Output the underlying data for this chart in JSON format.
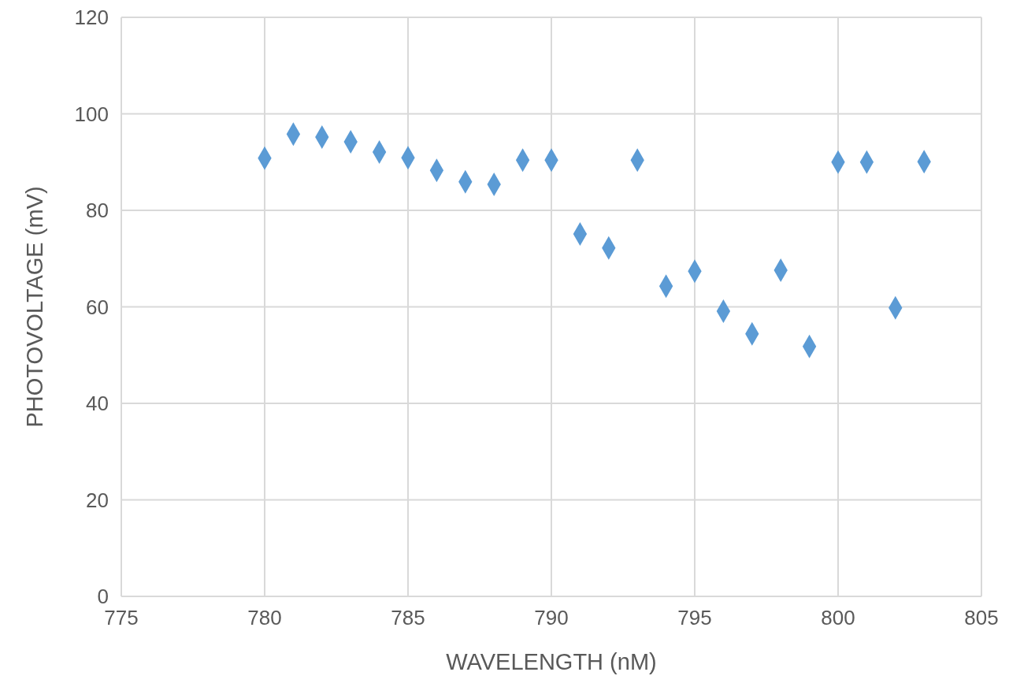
{
  "chart_data": {
    "type": "scatter",
    "xlabel": "WAVELENGTH (nM)",
    "ylabel": "PHOTOVOLTAGE (mV)",
    "x": [
      780,
      781,
      782,
      783,
      784,
      785,
      786,
      787,
      788,
      789,
      790,
      791,
      792,
      793,
      794,
      795,
      796,
      797,
      798,
      799,
      800,
      801,
      802,
      803
    ],
    "values": [
      90.8,
      95.8,
      95.2,
      94.2,
      92.1,
      90.9,
      88.3,
      85.9,
      85.4,
      90.4,
      90.4,
      75.1,
      72.2,
      90.4,
      64.3,
      67.4,
      59.1,
      54.4,
      67.6,
      51.8,
      90.0,
      90.0,
      59.8,
      90.1
    ],
    "color": "#5b9bd5",
    "marker": "diamond",
    "grid": true,
    "xlim": [
      775,
      805
    ],
    "xticks": [
      775,
      780,
      785,
      790,
      795,
      800,
      805
    ],
    "ylim": [
      0,
      120
    ],
    "yticks": [
      0,
      20,
      40,
      60,
      80,
      100,
      120
    ]
  }
}
